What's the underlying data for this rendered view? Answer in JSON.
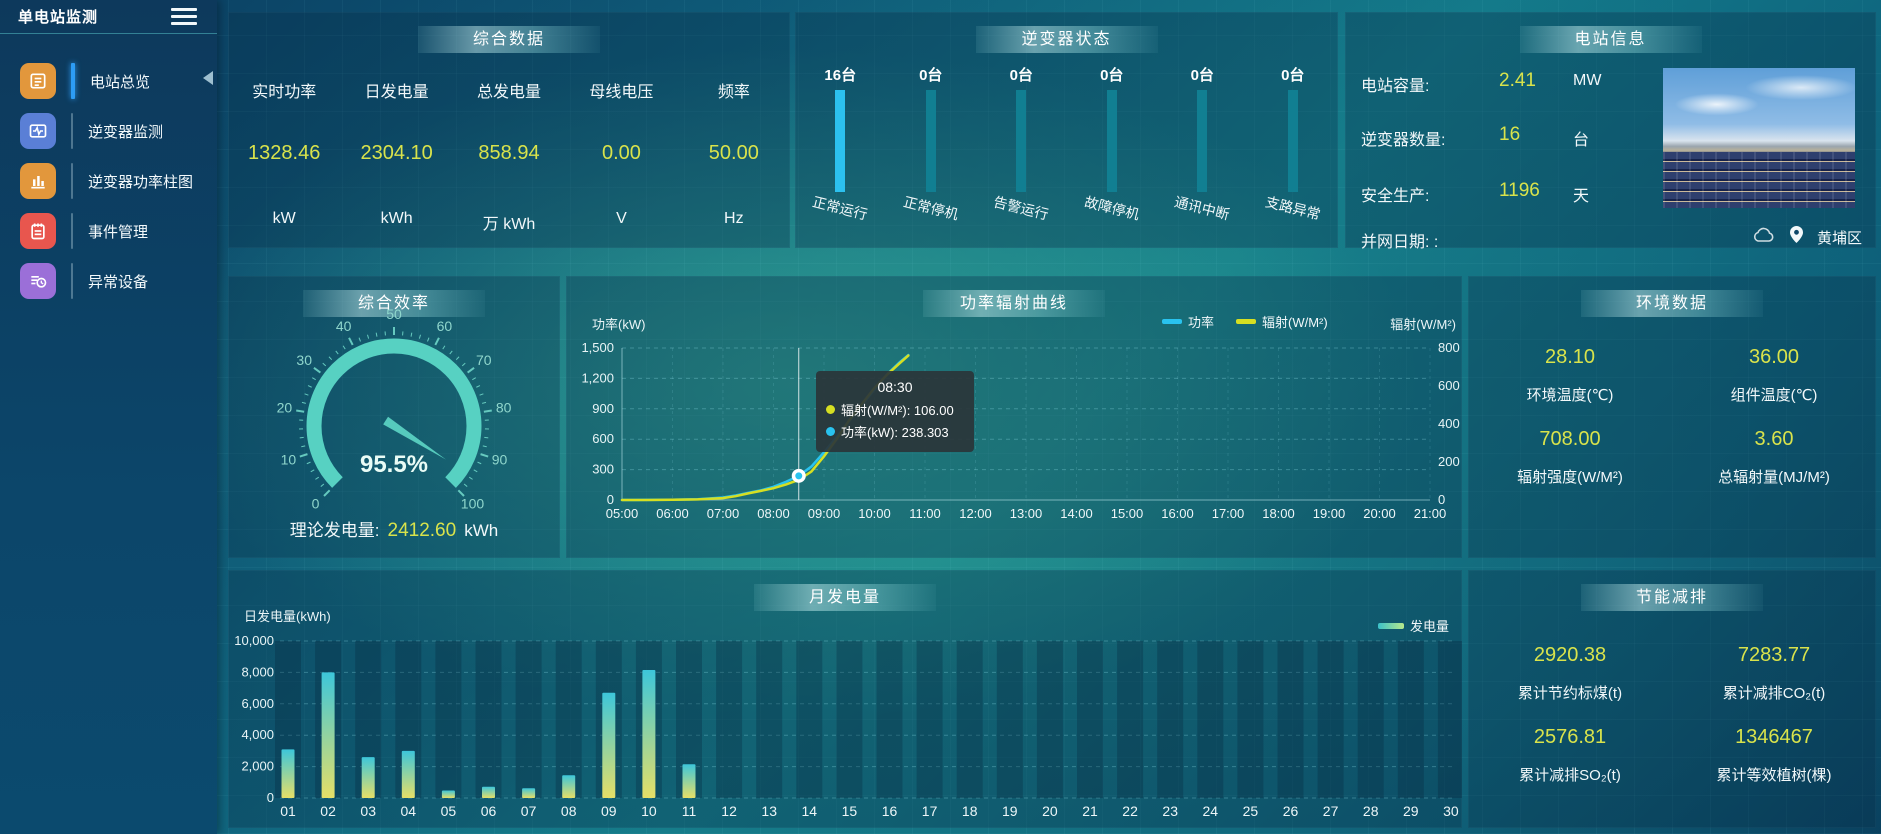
{
  "app": {
    "title": "单电站监测"
  },
  "sidebar": {
    "items": [
      {
        "label": "电站总览",
        "icon": "overview-icon",
        "icon_color": "#e2973c",
        "active": true
      },
      {
        "label": "逆变器监测",
        "icon": "inverter-monitor-icon",
        "icon_color": "#5a7fd6",
        "active": false
      },
      {
        "label": "逆变器功率柱图",
        "icon": "power-bars-icon",
        "icon_color": "#e2973c",
        "active": false
      },
      {
        "label": "事件管理",
        "icon": "event-manage-icon",
        "icon_color": "#e8564e",
        "active": false
      },
      {
        "label": "异常设备",
        "icon": "abnormal-device-icon",
        "icon_color": "#9b6fd8",
        "active": false
      }
    ]
  },
  "panels": {
    "summary": {
      "title": "综合数据",
      "stats": [
        {
          "label": "实时功率",
          "value": "1328.46",
          "unit": "kW"
        },
        {
          "label": "日发电量",
          "value": "2304.10",
          "unit": "kWh"
        },
        {
          "label": "总发电量",
          "value": "858.94",
          "unit": "万 kWh"
        },
        {
          "label": "母线电压",
          "value": "0.00",
          "unit": "V"
        },
        {
          "label": "频率",
          "value": "50.00",
          "unit": "Hz"
        }
      ]
    },
    "inverter_status": {
      "title": "逆变器状态"
    },
    "station_info": {
      "title": "电站信息",
      "rows": [
        {
          "label": "电站容量:",
          "value": "2.41",
          "unit": "MW"
        },
        {
          "label": "逆变器数量:",
          "value": "16",
          "unit": "台"
        },
        {
          "label": "安全生产:",
          "value": "1196",
          "unit": "天"
        },
        {
          "label": "并网日期: :",
          "value": "",
          "unit": ""
        }
      ],
      "location": "黄埔区"
    },
    "efficiency": {
      "title": "综合效率",
      "theory_label": "理论发电量:",
      "theory_value": "2412.60",
      "theory_unit": "kWh"
    },
    "power_curve": {
      "title": "功率辐射曲线"
    },
    "environment": {
      "title": "环境数据",
      "stats": [
        {
          "value": "28.10",
          "label": "环境温度(℃)"
        },
        {
          "value": "36.00",
          "label": "组件温度(℃)"
        },
        {
          "value": "708.00",
          "label": "辐射强度(W/M²)"
        },
        {
          "value": "3.60",
          "label": "总辐射量(MJ/M²)"
        }
      ]
    },
    "monthly": {
      "title": "月发电量"
    },
    "saving": {
      "title": "节能减排",
      "stats": [
        {
          "value": "2920.38",
          "label": "累计节约标煤(t)"
        },
        {
          "value": "7283.77",
          "label": "累计减排CO₂(t)"
        },
        {
          "value": "2576.81",
          "label": "累计减排SO₂(t)"
        },
        {
          "value": "1346467",
          "label": "累计等效植树(棵)"
        }
      ]
    }
  },
  "chart_data": [
    {
      "id": "power_radiation",
      "type": "line",
      "title": "功率辐射曲线",
      "x_hours": [
        5,
        5.5,
        6,
        6.5,
        7,
        7.25,
        7.5,
        7.75,
        8,
        8.25,
        8.5,
        8.75,
        9,
        9.25,
        9.5,
        9.75,
        10,
        10.25,
        10.5,
        10.67
      ],
      "series": [
        {
          "name": "功率",
          "unit": "kW",
          "axis": "left",
          "color": "#29c3ef",
          "values": [
            0,
            1,
            3,
            8,
            25,
            45,
            70,
            95,
            130,
            180,
            238.3,
            330,
            470,
            620,
            780,
            940,
            1090,
            1240,
            1360,
            1430
          ]
        },
        {
          "name": "辐射(W/M²)",
          "unit": "W/M²",
          "axis": "right",
          "color": "#d6df22",
          "values": [
            0,
            0,
            1,
            3,
            10,
            20,
            35,
            48,
            62,
            82,
            106,
            150,
            230,
            320,
            420,
            505,
            590,
            660,
            720,
            760
          ]
        }
      ],
      "x_ticks": [
        "05:00",
        "06:00",
        "07:00",
        "08:00",
        "09:00",
        "10:00",
        "11:00",
        "12:00",
        "13:00",
        "14:00",
        "15:00",
        "16:00",
        "17:00",
        "18:00",
        "19:00",
        "20:00",
        "21:00"
      ],
      "ylabel_left": "功率(kW)",
      "ylabel_right": "辐射(W/M²)",
      "ylim_left": [
        0,
        1500
      ],
      "ylim_right": [
        0,
        800
      ],
      "yticks_left": [
        "0",
        "300",
        "600",
        "900",
        "1,200",
        "1,500"
      ],
      "yticks_right": [
        "0",
        "200",
        "400",
        "600",
        "800"
      ],
      "legend": [
        "功率",
        "辐射(W/M²)"
      ],
      "grid": "dashed",
      "tooltip": {
        "time": "08:30",
        "x_hour": 8.5,
        "items": [
          {
            "name": "辐射(W/M²)",
            "value": "106.00",
            "color": "#d6df22"
          },
          {
            "name": "功率(kW)",
            "value": "238.303",
            "color": "#29c3ef"
          }
        ]
      }
    },
    {
      "id": "monthly_generation",
      "type": "bar",
      "title": "月发电量",
      "categories": [
        "01",
        "02",
        "03",
        "04",
        "05",
        "06",
        "07",
        "08",
        "09",
        "10",
        "11",
        "12",
        "13",
        "14",
        "15",
        "16",
        "17",
        "18",
        "19",
        "20",
        "21",
        "22",
        "23",
        "24",
        "25",
        "26",
        "27",
        "28",
        "29",
        "30"
      ],
      "values": [
        3100,
        8000,
        2600,
        3000,
        480,
        720,
        620,
        1450,
        6700,
        8150,
        2150,
        0,
        0,
        0,
        0,
        0,
        0,
        0,
        0,
        0,
        0,
        0,
        0,
        0,
        0,
        0,
        0,
        0,
        0,
        0
      ],
      "ylabel": "日发电量(kWh)",
      "ylim": [
        0,
        10000
      ],
      "yticks": [
        "0",
        "2,000",
        "4,000",
        "6,000",
        "8,000",
        "10,000"
      ],
      "legend": "发电量",
      "bar_color_top": "#3dc6da",
      "bar_color_bottom": "#e6df67",
      "grid": "dashed"
    },
    {
      "id": "efficiency_gauge",
      "type": "gauge",
      "title": "综合效率",
      "min": 0,
      "max": 100,
      "value": 95.5,
      "display": "95.5%",
      "tick_labels": [
        "0",
        "10",
        "20",
        "30",
        "40",
        "50",
        "60",
        "70",
        "80",
        "90",
        "100"
      ],
      "arc_color": "#57d1c2"
    },
    {
      "id": "inverter_status",
      "type": "bar",
      "title": "逆变器状态",
      "categories": [
        "正常运行",
        "正常停机",
        "告警运行",
        "故障停机",
        "通讯中断",
        "支路异常"
      ],
      "values": [
        16,
        0,
        0,
        0,
        0,
        0
      ],
      "counts": [
        "16台",
        "0台",
        "0台",
        "0台",
        "0台",
        "0台"
      ],
      "active_color": "#2cc1ef",
      "idle_color": "#117f92"
    }
  ]
}
